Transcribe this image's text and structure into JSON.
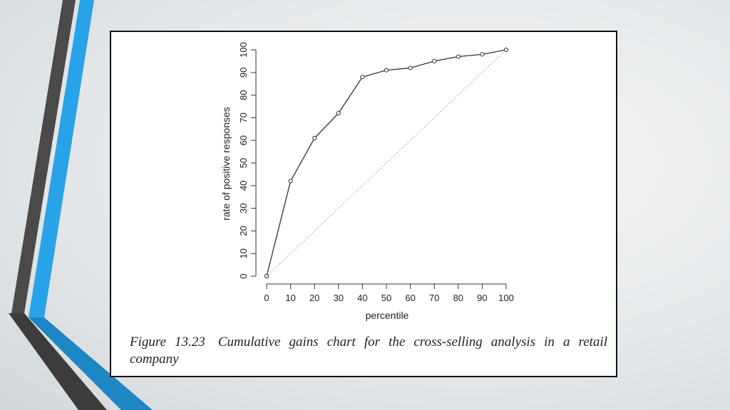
{
  "slide": {
    "caption": {
      "figure_number": "Figure 13.23",
      "text": "Cumulative gains chart for the cross-selling analysis in a retail company"
    },
    "colors": {
      "accent_blue": "#29a3e8",
      "accent_dark": "#4a4a4a",
      "line": "#333333",
      "baseline": "#9a9a9a"
    }
  },
  "chart_data": {
    "type": "line",
    "xlabel": "percentile",
    "ylabel": "rate of positive responses",
    "xlim": [
      0,
      100
    ],
    "ylim": [
      0,
      100
    ],
    "x_ticks": [
      0,
      10,
      20,
      30,
      40,
      50,
      60,
      70,
      80,
      90,
      100
    ],
    "y_ticks": [
      0,
      10,
      20,
      30,
      40,
      50,
      60,
      70,
      80,
      90,
      100
    ],
    "grid": false,
    "series": [
      {
        "style": "solid-with-circle-markers",
        "x": [
          0,
          10,
          20,
          30,
          40,
          50,
          60,
          70,
          80,
          90,
          100
        ],
        "y": [
          0,
          42,
          61,
          72,
          88,
          91,
          92,
          95,
          97,
          98,
          100
        ]
      },
      {
        "style": "dotted",
        "x": [
          0,
          100
        ],
        "y": [
          0,
          100
        ]
      }
    ]
  }
}
